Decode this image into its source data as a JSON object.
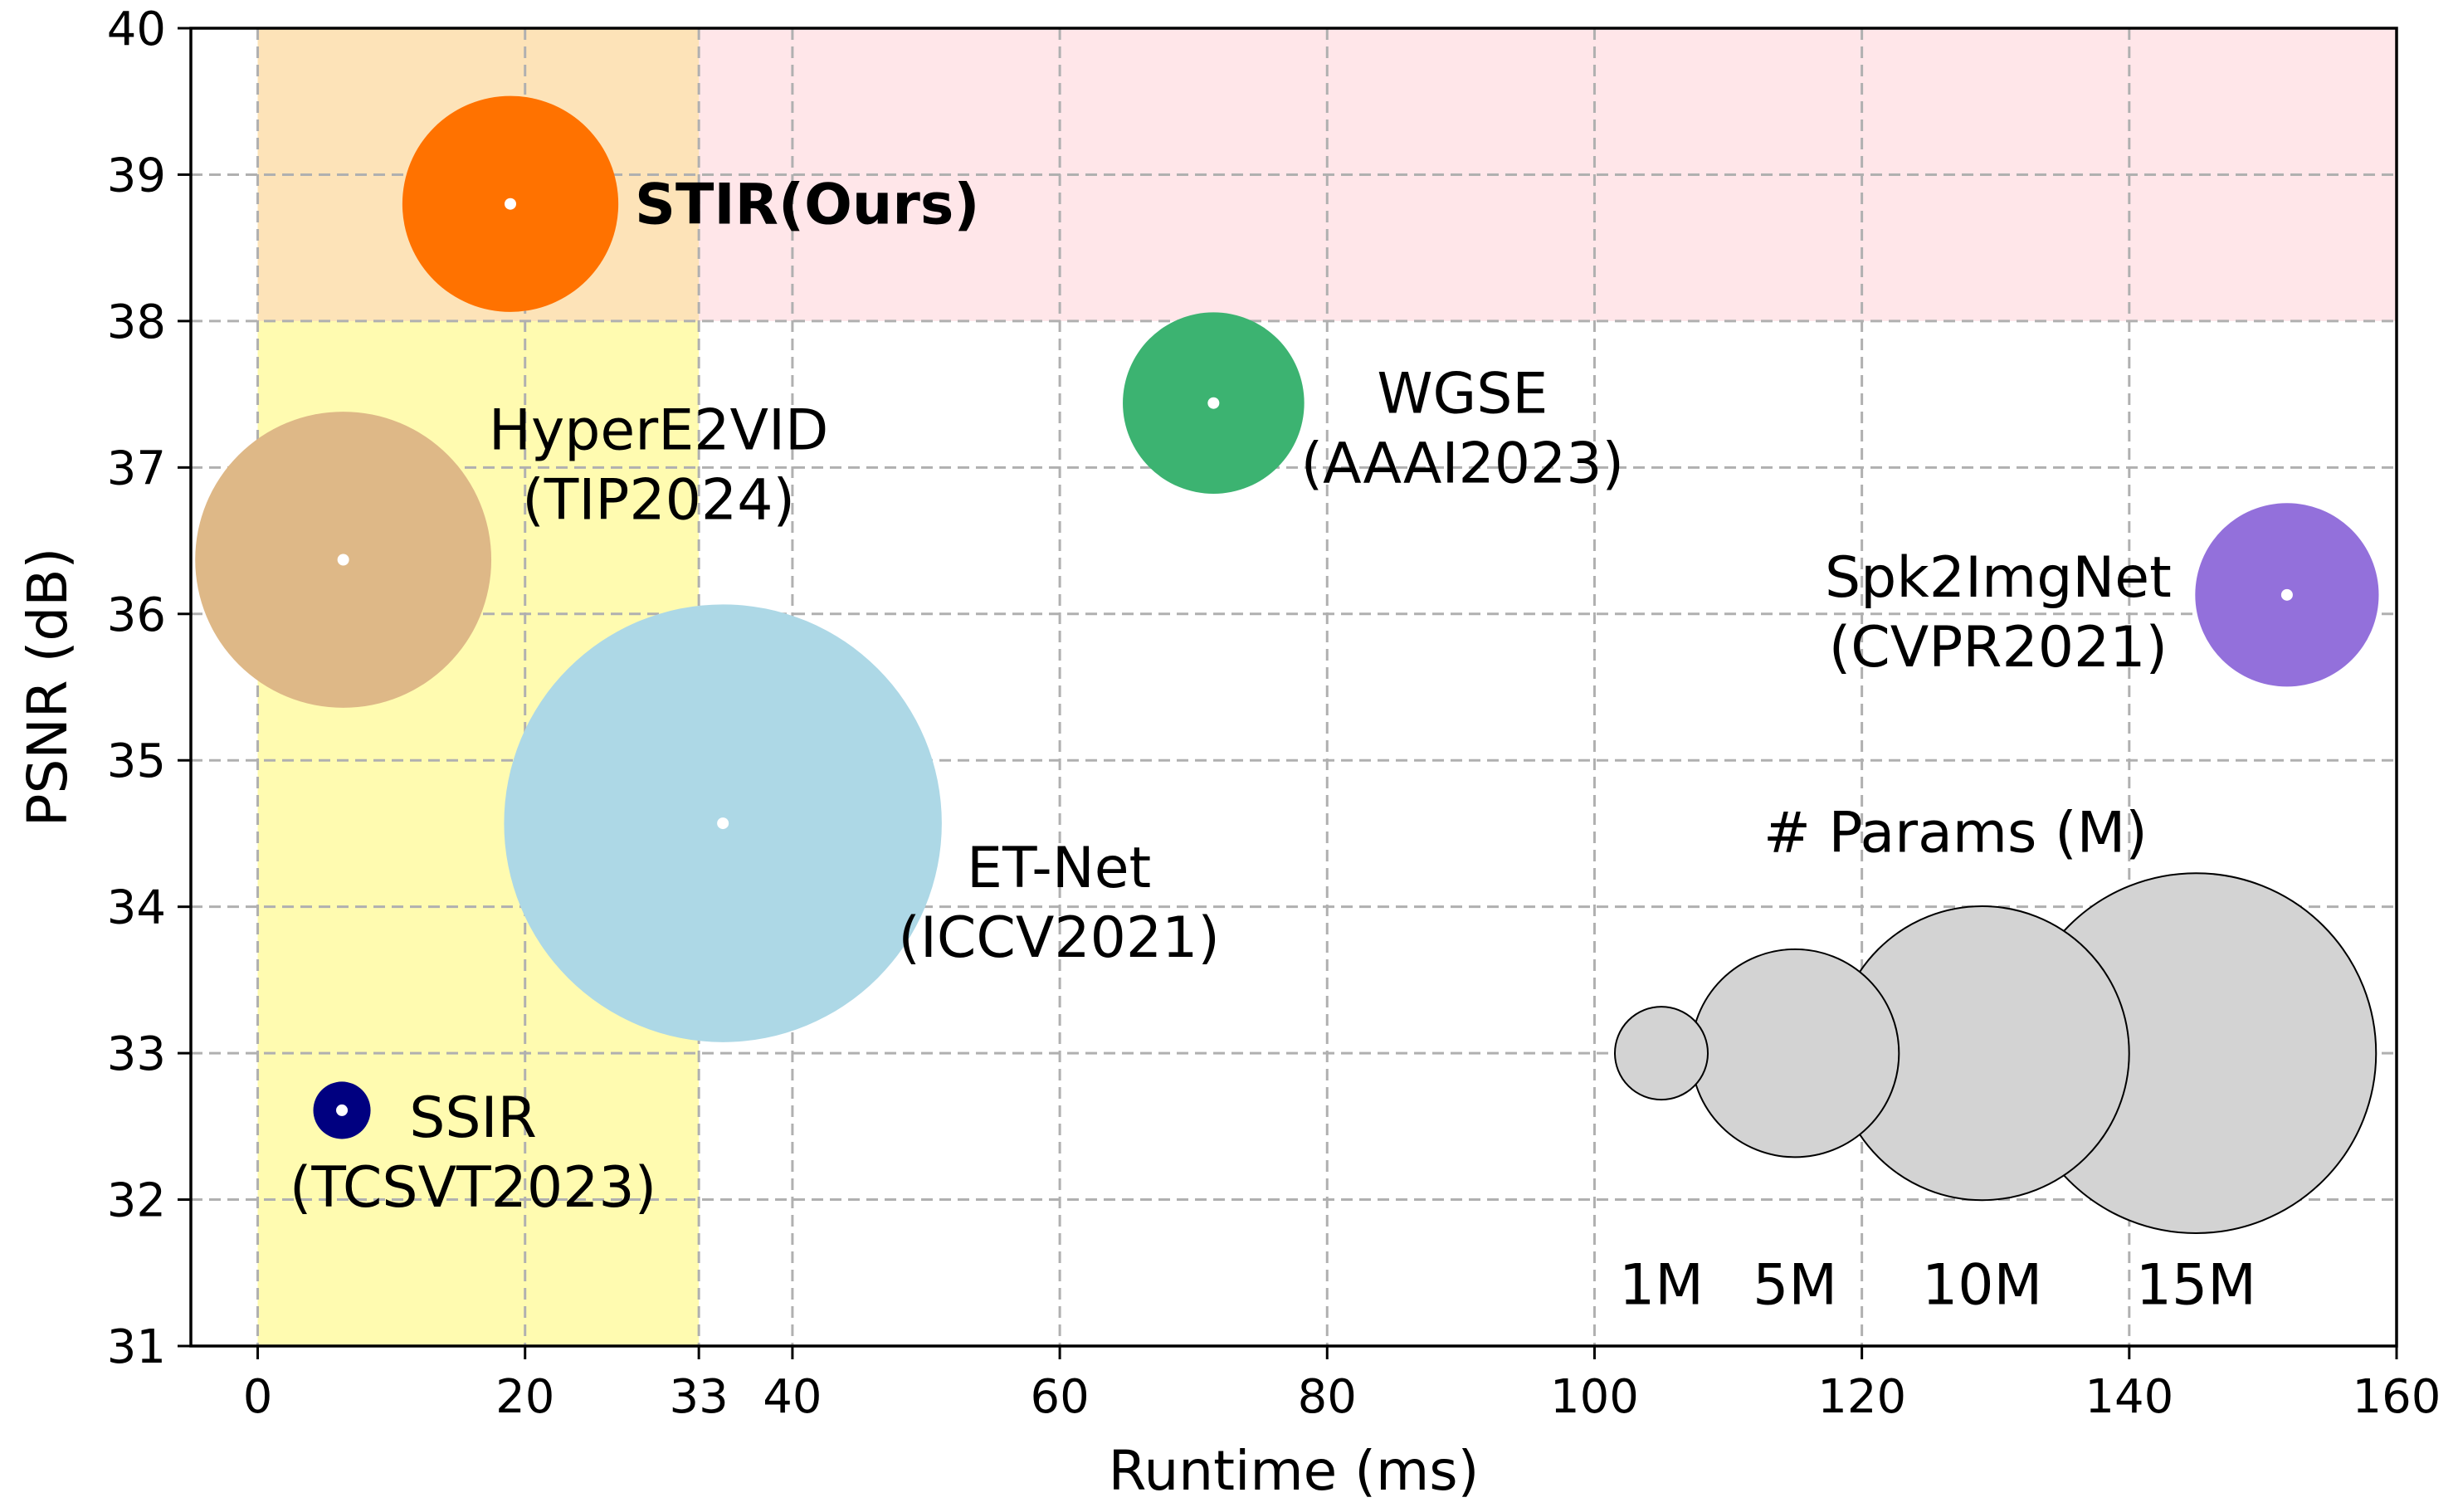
{
  "chart_data": {
    "type": "scatter",
    "xlabel": "Runtime (ms)",
    "ylabel": "PSNR (dB)",
    "xlim": [
      -5,
      160
    ],
    "ylim": [
      31,
      40
    ],
    "xticks": [
      0,
      20,
      33,
      40,
      60,
      80,
      100,
      120,
      140,
      160
    ],
    "yticks": [
      31,
      32,
      33,
      34,
      35,
      36,
      37,
      38,
      39,
      40
    ],
    "grid": true,
    "regions": [
      {
        "name": "realtime-band",
        "x": [
          0,
          33
        ],
        "y": [
          31,
          40
        ],
        "color": "#fffbb0"
      },
      {
        "name": "high-psnr-band",
        "x": [
          33,
          160
        ],
        "y": [
          38,
          40
        ],
        "color": "#ffe6e9"
      },
      {
        "name": "overlap-band",
        "x": [
          0,
          33
        ],
        "y": [
          38,
          40
        ],
        "color": "#fde3b8"
      }
    ],
    "points": [
      {
        "name": "STIR(Ours)",
        "label_lines": [
          "STIR(Ours)"
        ],
        "x": 18.9,
        "y": 38.8,
        "params_m": 5.4,
        "color": "#ff7200",
        "label_color": "#ff0000",
        "bold": true
      },
      {
        "name": "HyperE2VID",
        "label_lines": [
          "HyperE2VID",
          "(TIP2024)"
        ],
        "x": 6.4,
        "y": 36.37,
        "params_m": 10.15,
        "color": "#deb887",
        "label_color": "#000000",
        "bold": false
      },
      {
        "name": "WGSE",
        "label_lines": [
          "WGSE",
          "(AAAI2023)"
        ],
        "x": 71.5,
        "y": 37.44,
        "params_m": 3.81,
        "color": "#3cb371",
        "label_color": "#000000",
        "bold": false
      },
      {
        "name": "Spk2ImgNet",
        "label_lines": [
          "Spk2ImgNet",
          "(CVPR2021)"
        ],
        "x": 151.8,
        "y": 36.13,
        "params_m": 3.9,
        "color": "#9370db",
        "label_color": "#000000",
        "bold": false
      },
      {
        "name": "ET-Net",
        "label_lines": [
          "ET-Net",
          "(ICCV2021)"
        ],
        "x": 34.8,
        "y": 34.57,
        "params_m": 22.18,
        "color": "#add8e6",
        "label_color": "#000000",
        "bold": false
      },
      {
        "name": "SSIR",
        "label_lines": [
          "SSIR",
          "(TCSVT2023)"
        ],
        "x": 6.3,
        "y": 32.61,
        "params_m": 0.38,
        "color": "#000080",
        "label_color": "#000000",
        "bold": false
      }
    ],
    "size_legend": {
      "title": "# Params (M)",
      "items": [
        {
          "label": "1M",
          "params_m": 1,
          "x": 105,
          "y": 33
        },
        {
          "label": "5M",
          "params_m": 5,
          "x": 115,
          "y": 33
        },
        {
          "label": "10M",
          "params_m": 10,
          "x": 129,
          "y": 33
        },
        {
          "label": "15M",
          "params_m": 15,
          "x": 145,
          "y": 33
        }
      ],
      "fill": "#d3d3d3"
    }
  }
}
